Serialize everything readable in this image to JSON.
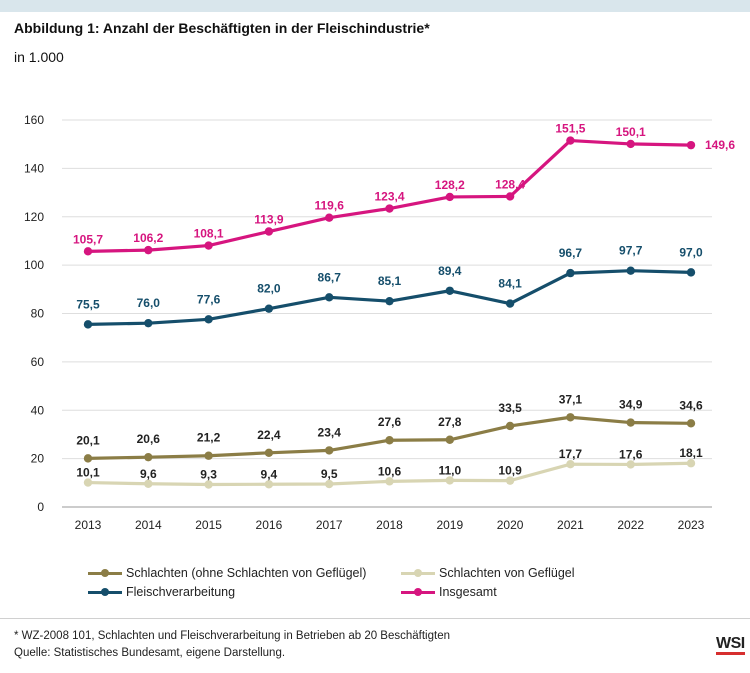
{
  "header": {
    "title": "Abbildung 1: Anzahl der Beschäftigten in der Fleischindustrie*",
    "unit": "in 1.000"
  },
  "legend": {
    "schlachten": "Schlachten (ohne Schlachten von Geflügel)",
    "gefluegel": "Schlachten von Geflügel",
    "verarbeitung": "Fleischverarbeitung",
    "insgesamt": "Insgesamt"
  },
  "footer": {
    "note": "* WZ-2008 101, Schlachten und Fleischverarbeitung in Betrieben ab 20 Beschäftigten",
    "source": "Quelle: Statistisches Bundesamt, eigene Darstellung.",
    "logo": "WSI"
  },
  "chart_data": {
    "type": "line",
    "title": "Abbildung 1: Anzahl der Beschäftigten in der Fleischindustrie*",
    "ylabel": "in 1.000",
    "xlabel": "",
    "x": [
      "2013",
      "2014",
      "2015",
      "2016",
      "2017",
      "2018",
      "2019",
      "2020",
      "2021",
      "2022",
      "2023"
    ],
    "ylim": [
      0,
      160
    ],
    "yticks": [
      "0",
      "20",
      "40",
      "60",
      "80",
      "100",
      "120",
      "140",
      "160"
    ],
    "grid": "horizontal",
    "legend_position": "bottom",
    "series": [
      {
        "name": "Insgesamt",
        "color": "#d6157f",
        "values": [
          105.7,
          106.2,
          108.1,
          113.9,
          119.6,
          123.4,
          128.2,
          128.4,
          151.5,
          150.1,
          149.6
        ],
        "labels": [
          "105,7",
          "106,2",
          "108,1",
          "113,9",
          "119,6",
          "123,4",
          "128,2",
          "128,4",
          "151,5",
          "150,1",
          "149,6"
        ]
      },
      {
        "name": "Fleischverarbeitung",
        "color": "#154e6b",
        "values": [
          75.5,
          76.0,
          77.6,
          82.0,
          86.7,
          85.1,
          89.4,
          84.1,
          96.7,
          97.7,
          97.0
        ],
        "labels": [
          "75,5",
          "76,0",
          "77,6",
          "82,0",
          "86,7",
          "85,1",
          "89,4",
          "84,1",
          "96,7",
          "97,7",
          "97,0"
        ]
      },
      {
        "name": "Schlachten (ohne Schlachten von Geflügel)",
        "color": "#8b7d46",
        "values": [
          20.1,
          20.6,
          21.2,
          22.4,
          23.4,
          27.6,
          27.8,
          33.5,
          37.1,
          34.9,
          34.6
        ],
        "labels": [
          "20,1",
          "20,6",
          "21,2",
          "22,4",
          "23,4",
          "27,6",
          "27,8",
          "33,5",
          "37,1",
          "34,9",
          "34,6"
        ]
      },
      {
        "name": "Schlachten von Geflügel",
        "color": "#d8d5b3",
        "values": [
          10.1,
          9.6,
          9.3,
          9.4,
          9.5,
          10.6,
          11.0,
          10.9,
          17.7,
          17.6,
          18.1
        ],
        "labels": [
          "10,1",
          "9,6",
          "9,3",
          "9,4",
          "9,5",
          "10,6",
          "11,0",
          "10,9",
          "17,7",
          "17,6",
          "18,1"
        ]
      }
    ]
  }
}
